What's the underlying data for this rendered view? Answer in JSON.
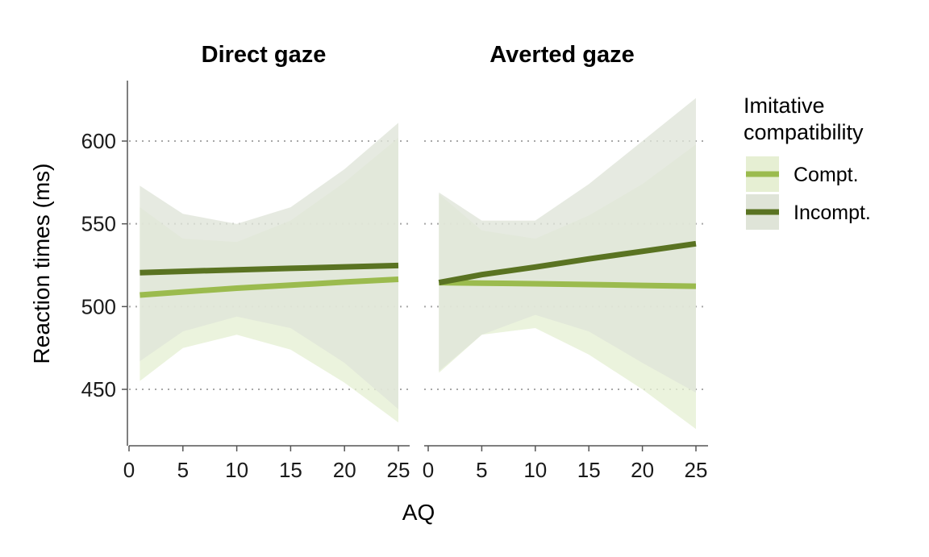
{
  "chart_data": {
    "type": "line",
    "xlabel": "AQ",
    "ylabel": "Reaction times (ms)",
    "xlim": [
      0,
      25
    ],
    "ylim": [
      413,
      637
    ],
    "x_ticks": [
      0,
      5,
      10,
      15,
      20,
      25
    ],
    "y_ticks": [
      450,
      500,
      550,
      600
    ],
    "grid": "horizontal dotted",
    "legend": {
      "title": [
        "Imitative",
        "compatibility"
      ],
      "placement": "right",
      "entries": [
        {
          "label": "Compt.",
          "color": "#9bbb4e",
          "band_color": "#e6efd3"
        },
        {
          "label": "Incompt.",
          "color": "#5a7322",
          "band_color": "#dfe4d8"
        }
      ]
    },
    "series_style": {
      "Compt.": {
        "color": "#9bbb4e",
        "band_color": "#e6efd3"
      },
      "Incompt.": {
        "color": "#5a7322",
        "band_color": "#dfe4d8"
      }
    },
    "panels": [
      {
        "title": "Direct gaze",
        "series": [
          {
            "name": "Compt.",
            "x": [
              1,
              5,
              10,
              15,
              20,
              25
            ],
            "y": [
              507,
              508.9,
              511.1,
              512.9,
              514.8,
              516.5
            ],
            "lower": [
              455,
              475,
              483,
              474,
              454,
              430
            ],
            "upper": [
              560,
              541,
              539,
              552,
              575,
              602
            ]
          },
          {
            "name": "Incompt.",
            "x": [
              1,
              5,
              10,
              15,
              20,
              25
            ],
            "y": [
              520.5,
              521.3,
              522.2,
              523.1,
              524,
              524.8
            ],
            "lower": [
              467,
              485,
              494,
              487,
              466,
              438
            ],
            "upper": [
              573,
              556,
              550,
              560,
              583,
              611
            ]
          }
        ]
      },
      {
        "title": "Averted gaze",
        "series": [
          {
            "name": "Compt.",
            "x": [
              1,
              5,
              10,
              15,
              20,
              25
            ],
            "y": [
              514.5,
              514.2,
              513.8,
              513.3,
              512.8,
              512.3
            ],
            "lower": [
              460,
              483,
              487,
              471,
              450,
              426
            ],
            "upper": [
              568,
              546,
              541,
              555,
              574,
              598
            ]
          },
          {
            "name": "Incompt.",
            "x": [
              1,
              5,
              10,
              15,
              20,
              25
            ],
            "y": [
              514.5,
              519.3,
              523.9,
              528.8,
              533.4,
              538
            ],
            "lower": [
              461,
              483,
              495,
              485,
              466,
              448
            ],
            "upper": [
              569,
              552,
              552,
              574,
              600,
              626
            ]
          }
        ]
      }
    ]
  }
}
